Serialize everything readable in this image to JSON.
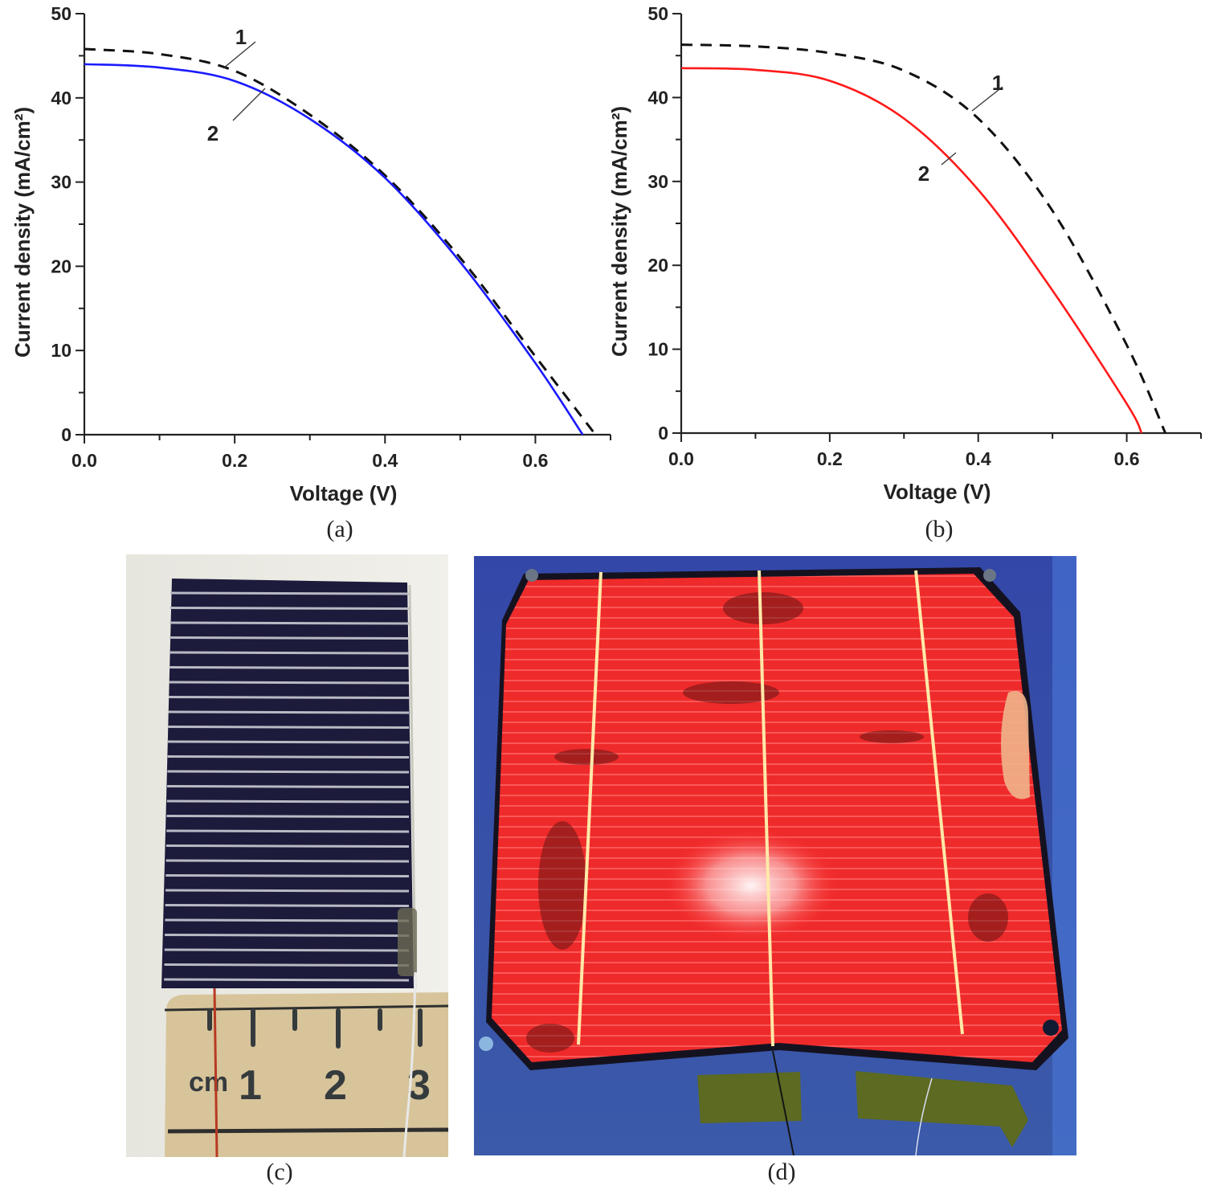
{
  "captions": {
    "a": "(a)",
    "b": "(b)",
    "c": "(c)",
    "d": "(d)"
  },
  "chart_data": [
    {
      "id": "a",
      "type": "line",
      "title": "",
      "xlabel": "Voltage (V)",
      "ylabel": "Current density (mA/cm²)",
      "xlim": [
        0.0,
        0.7
      ],
      "ylim": [
        0,
        50
      ],
      "xticks": [
        "0.0",
        "0.2",
        "0.4",
        "0.6"
      ],
      "yticks": [
        "0",
        "10",
        "20",
        "30",
        "40",
        "50"
      ],
      "grid": false,
      "legend": "curve annotations 1 and 2",
      "series": [
        {
          "name": "1",
          "style": "dashed",
          "color": "#111111",
          "x": [
            0.0,
            0.1,
            0.2,
            0.3,
            0.4,
            0.5,
            0.6,
            0.68
          ],
          "y": [
            45.8,
            45.2,
            43.2,
            38.0,
            30.8,
            21.0,
            9.3,
            0
          ]
        },
        {
          "name": "2",
          "style": "solid",
          "color": "#1a1aff",
          "x": [
            0.0,
            0.1,
            0.2,
            0.3,
            0.4,
            0.5,
            0.6,
            0.663
          ],
          "y": [
            44.0,
            43.6,
            42.0,
            37.5,
            30.5,
            20.5,
            8.5,
            0
          ]
        }
      ]
    },
    {
      "id": "b",
      "type": "line",
      "title": "",
      "xlabel": "Voltage (V)",
      "ylabel": "Current density (mA/cm²)",
      "xlim": [
        0.0,
        0.7
      ],
      "ylim": [
        0,
        50
      ],
      "xticks": [
        "0.0",
        "0.2",
        "0.4",
        "0.6"
      ],
      "yticks": [
        "0",
        "10",
        "20",
        "30",
        "40",
        "50"
      ],
      "grid": false,
      "legend": "curve annotations 1 and 2",
      "series": [
        {
          "name": "1",
          "style": "dashed",
          "color": "#111111",
          "x": [
            0.0,
            0.1,
            0.2,
            0.3,
            0.4,
            0.5,
            0.6,
            0.652
          ],
          "y": [
            46.3,
            46.1,
            45.3,
            43.2,
            37.5,
            26.5,
            10.5,
            0
          ]
        },
        {
          "name": "2",
          "style": "solid",
          "color": "#ff1a1a",
          "x": [
            0.0,
            0.1,
            0.2,
            0.3,
            0.4,
            0.5,
            0.6,
            0.62
          ],
          "y": [
            43.5,
            43.3,
            42.0,
            37.5,
            29.0,
            17.0,
            3.5,
            0
          ]
        }
      ]
    }
  ],
  "photos": {
    "c": {
      "description": "small dark blue solar cell with silver fingers above a cm ruler",
      "ruler_labels": [
        "cm",
        "1",
        "2",
        "3"
      ]
    },
    "d": {
      "description": "large solar cell under electroluminescence/UV imaging showing red surface with three busbars on blue background"
    }
  }
}
